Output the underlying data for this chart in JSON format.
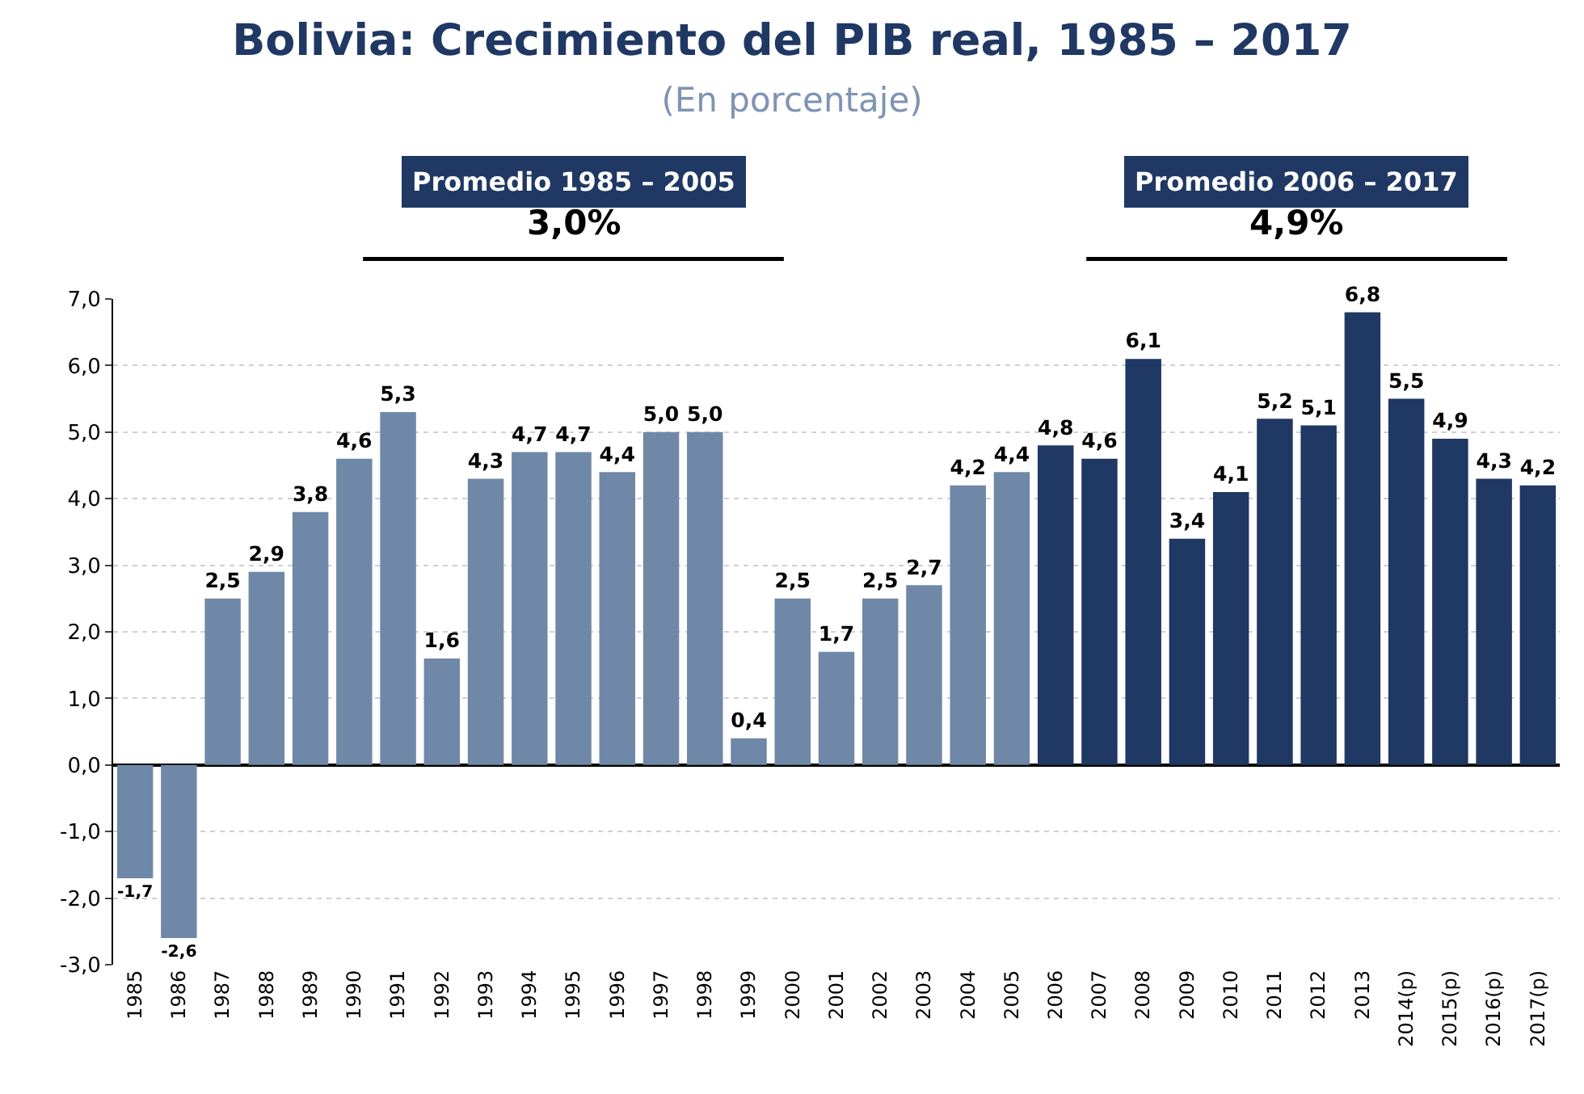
{
  "chart_data": {
    "type": "bar",
    "title": "Bolivia: Crecimiento del PIB real, 1985 – 2017",
    "subtitle": "(En porcentaje)",
    "categories": [
      "1985",
      "1986",
      "1987",
      "1988",
      "1989",
      "1990",
      "1991",
      "1992",
      "1993",
      "1994",
      "1995",
      "1996",
      "1997",
      "1998",
      "1999",
      "2000",
      "2001",
      "2002",
      "2003",
      "2004",
      "2005",
      "2006",
      "2007",
      "2008",
      "2009",
      "2010",
      "2011",
      "2012",
      "2013",
      "2014(p)",
      "2015(p)",
      "2016(p)",
      "2017(p)"
    ],
    "values": [
      -1.7,
      -2.6,
      2.5,
      2.9,
      3.8,
      4.6,
      5.3,
      1.6,
      4.3,
      4.7,
      4.7,
      4.4,
      5.0,
      5.0,
      0.4,
      2.5,
      1.7,
      2.5,
      2.7,
      4.2,
      4.4,
      4.8,
      4.6,
      6.1,
      3.4,
      4.1,
      5.2,
      5.1,
      6.8,
      5.5,
      4.9,
      4.3,
      4.2
    ],
    "colors": [
      "#7088a8",
      "#7088a8",
      "#7088a8",
      "#7088a8",
      "#7088a8",
      "#7088a8",
      "#7088a8",
      "#7088a8",
      "#7088a8",
      "#7088a8",
      "#7088a8",
      "#7088a8",
      "#7088a8",
      "#7088a8",
      "#7088a8",
      "#7088a8",
      "#7088a8",
      "#7088a8",
      "#7088a8",
      "#7088a8",
      "#7088a8",
      "#1f3864",
      "#1f3864",
      "#1f3864",
      "#1f3864",
      "#1f3864",
      "#1f3864",
      "#1f3864",
      "#1f3864",
      "#1f3864",
      "#1f3864",
      "#1f3864",
      "#1f3864"
    ],
    "ylim": [
      -3,
      7
    ],
    "yticks": [
      {
        "value": -3,
        "label": "-3,0"
      },
      {
        "value": -2,
        "label": "-2,0"
      },
      {
        "value": -1,
        "label": "-1,0"
      },
      {
        "value": 0,
        "label": "0,0"
      },
      {
        "value": 1,
        "label": "1,0"
      },
      {
        "value": 2,
        "label": "2,0"
      },
      {
        "value": 3,
        "label": "3,0"
      },
      {
        "value": 4,
        "label": "4,0"
      },
      {
        "value": 5,
        "label": "5,0"
      },
      {
        "value": 6,
        "label": "6,0"
      },
      {
        "value": 7,
        "label": "7,0"
      }
    ],
    "annotations": [
      "Promedio 1985 – 2005",
      "3,0%",
      "Promedio 2006 – 2017",
      "4,9%"
    ],
    "value_labels": [
      "-1,7",
      "-2,6",
      "2,5",
      "2,9",
      "3,8",
      "4,6",
      "5,3",
      "1,6",
      "4,3",
      "4,7",
      "4,7",
      "4,4",
      "5,0",
      "5,0",
      "0,4",
      "2,5",
      "1,7",
      "2,5",
      "2,7",
      "4,2",
      "4,4",
      "4,8",
      "4,6",
      "6,1",
      "3,4",
      "4,1",
      "5,2",
      "5,1",
      "6,8",
      "5,5",
      "4,9",
      "4,3",
      "4,2"
    ],
    "grid": "y",
    "legend": false
  }
}
